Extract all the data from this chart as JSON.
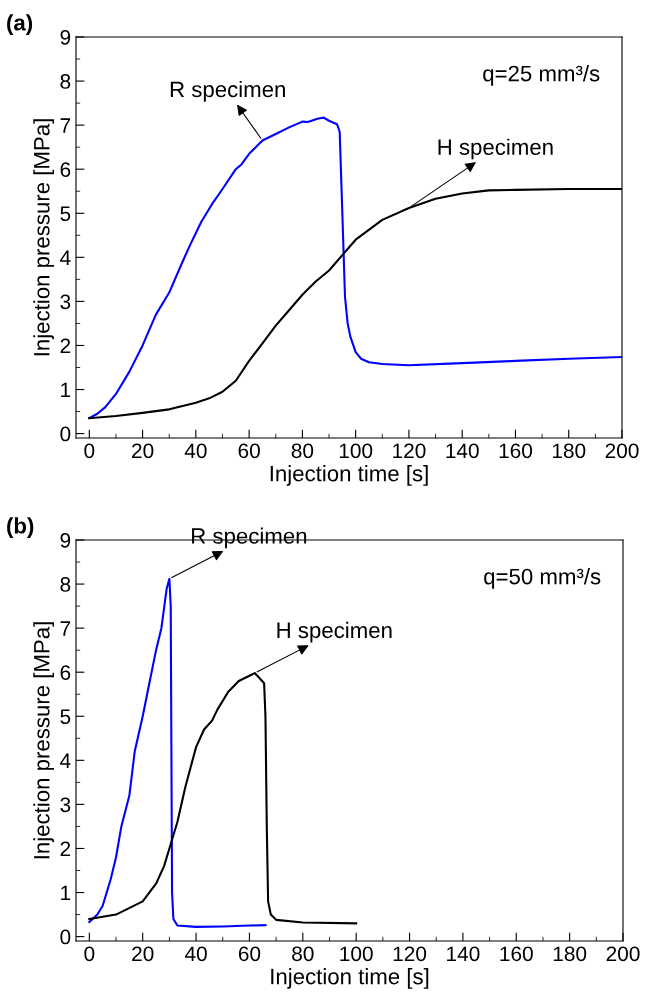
{
  "chart_data": [
    {
      "type": "line",
      "title": "(a)",
      "xlabel": "Injection time [s]",
      "ylabel": "Injection pressure [MPa]",
      "xlim": [
        -5,
        200
      ],
      "ylim": [
        -0.1,
        9
      ],
      "xticks": [
        0,
        20,
        40,
        60,
        80,
        100,
        120,
        140,
        160,
        180,
        200
      ],
      "yticks": [
        0,
        1,
        2,
        3,
        4,
        5,
        6,
        7,
        8,
        9
      ],
      "grid": false,
      "legend": false,
      "marker": "none",
      "line_style": "solid",
      "series": [
        {
          "color": "#0000ff",
          "x": [
            0,
            3,
            6,
            10,
            15,
            20,
            25,
            30,
            35,
            38,
            42,
            46,
            50,
            55,
            57,
            60,
            65,
            70,
            75,
            80,
            82,
            86,
            88,
            90,
            93,
            94,
            95,
            96,
            97,
            98,
            100,
            102,
            105,
            110,
            120,
            140,
            160,
            180,
            200
          ],
          "values": [
            0.35,
            0.45,
            0.6,
            0.9,
            1.4,
            2.0,
            2.7,
            3.2,
            3.9,
            4.3,
            4.8,
            5.2,
            5.55,
            6.0,
            6.1,
            6.35,
            6.65,
            6.8,
            6.95,
            7.08,
            7.07,
            7.15,
            7.17,
            7.1,
            7.02,
            6.85,
            5.0,
            3.1,
            2.5,
            2.2,
            1.85,
            1.7,
            1.62,
            1.58,
            1.55,
            1.6,
            1.65,
            1.7,
            1.74
          ]
        },
        {
          "color": "#000000",
          "x": [
            0,
            10,
            20,
            30,
            40,
            45,
            50,
            55,
            60,
            65,
            70,
            75,
            80,
            85,
            90,
            95,
            100,
            110,
            120,
            130,
            140,
            150,
            160,
            180,
            200
          ],
          "values": [
            0.35,
            0.4,
            0.47,
            0.55,
            0.7,
            0.8,
            0.95,
            1.2,
            1.65,
            2.05,
            2.45,
            2.8,
            3.15,
            3.45,
            3.7,
            4.05,
            4.4,
            4.85,
            5.12,
            5.33,
            5.45,
            5.52,
            5.53,
            5.55,
            5.55
          ]
        }
      ],
      "annotations": [
        {
          "text": "R specimen",
          "x": 65,
          "y": 6.65
        },
        {
          "text": "H specimen",
          "x": 120,
          "y": 5.12
        },
        "q=25 mm³/s"
      ]
    },
    {
      "type": "line",
      "title": "(b)",
      "xlabel": "Injection time [s]",
      "ylabel": "Injection pressure [MPa]",
      "xlim": [
        -5,
        200
      ],
      "ylim": [
        -0.1,
        9
      ],
      "xticks": [
        0,
        20,
        40,
        60,
        80,
        100,
        120,
        140,
        160,
        180,
        200
      ],
      "yticks": [
        0,
        1,
        2,
        3,
        4,
        5,
        6,
        7,
        8,
        9
      ],
      "grid": false,
      "legend": false,
      "marker": "none",
      "line_style": "solid",
      "series": [
        {
          "color": "#0000ff",
          "x": [
            0,
            3,
            5,
            8,
            10,
            12,
            15,
            17,
            20,
            22,
            25,
            27,
            29,
            30,
            30.5,
            31,
            31.5,
            33,
            40,
            50,
            60,
            66
          ],
          "values": [
            0.33,
            0.5,
            0.7,
            1.3,
            1.8,
            2.5,
            3.2,
            4.2,
            5.0,
            5.6,
            6.5,
            7.0,
            7.9,
            8.12,
            7.5,
            1.0,
            0.4,
            0.25,
            0.22,
            0.23,
            0.25,
            0.26
          ]
        },
        {
          "color": "#000000",
          "x": [
            0,
            10,
            20,
            25,
            28,
            30,
            33,
            36,
            40,
            43,
            46,
            48,
            52,
            56,
            60,
            62,
            64,
            65.5,
            66,
            66.5,
            67,
            68,
            70,
            80,
            100
          ],
          "values": [
            0.4,
            0.5,
            0.8,
            1.2,
            1.6,
            2.0,
            2.6,
            3.4,
            4.3,
            4.7,
            4.9,
            5.15,
            5.55,
            5.8,
            5.92,
            5.98,
            5.85,
            5.75,
            5.0,
            2.5,
            0.8,
            0.5,
            0.38,
            0.32,
            0.3
          ]
        }
      ],
      "annotations": [
        {
          "text": "R specimen",
          "x": 30,
          "y": 8.12
        },
        {
          "text": "H specimen",
          "x": 62,
          "y": 5.98
        },
        "q=50 mm³/s"
      ]
    }
  ]
}
